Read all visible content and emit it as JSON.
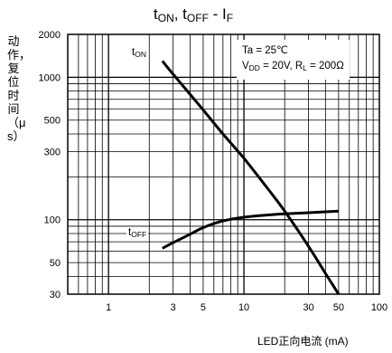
{
  "chart_data": {
    "type": "line",
    "title": {
      "main": "t",
      "sub1": "ON",
      "mid": ", t",
      "sub2": "OFF",
      "tail": " - I",
      "sub3": "F"
    },
    "xlabel": "LED正向电流 (mA)",
    "ylabel": "动作，复位时间（μs）",
    "x_scale": "log",
    "y_scale": "log",
    "xlim": [
      0.5,
      100
    ],
    "ylim": [
      30,
      2000
    ],
    "x_ticks": [
      {
        "value": 1,
        "label": "1"
      },
      {
        "value": 3,
        "label": "3"
      },
      {
        "value": 5,
        "label": "5"
      },
      {
        "value": 10,
        "label": "10"
      },
      {
        "value": 30,
        "label": "30"
      },
      {
        "value": 50,
        "label": "50"
      },
      {
        "value": 100,
        "label": "100"
      }
    ],
    "y_ticks": [
      {
        "value": 30,
        "label": "30"
      },
      {
        "value": 50,
        "label": "50"
      },
      {
        "value": 100,
        "label": "100"
      },
      {
        "value": 300,
        "label": "300"
      },
      {
        "value": 500,
        "label": "500"
      },
      {
        "value": 1000,
        "label": "1000"
      },
      {
        "value": 2000,
        "label": "2000"
      }
    ],
    "grid": true,
    "conditions": {
      "line1": "Ta = 25℃",
      "line2_pre": "V",
      "line2_sub1": "DD",
      "line2_mid": " = 20V, R",
      "line2_sub2": "L",
      "line2_post": " = 200Ω"
    },
    "series": [
      {
        "name": "tON",
        "label_main": "t",
        "label_sub": "ON",
        "color": "#000000",
        "x": [
          2.5,
          3,
          4,
          5,
          7,
          10,
          15,
          20,
          30,
          40,
          50
        ],
        "y": [
          1300,
          1050,
          760,
          590,
          400,
          270,
          165,
          115,
          65,
          42,
          30
        ]
      },
      {
        "name": "tOFF",
        "label_main": "t",
        "label_sub": "OFF",
        "color": "#000000",
        "x": [
          2.5,
          3,
          4,
          5,
          7,
          10,
          15,
          20,
          30,
          50
        ],
        "y": [
          63,
          69,
          79,
          88,
          98,
          104,
          108,
          110,
          112,
          115
        ]
      }
    ]
  }
}
